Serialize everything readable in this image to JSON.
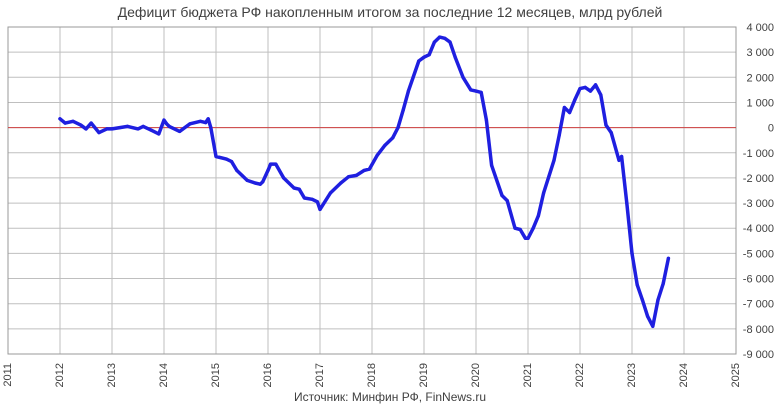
{
  "chart_data": {
    "type": "line",
    "title": "Дефицит бюджета РФ накопленным итогом за последние 12 месяцев, млрд рублей",
    "source": "Источник: Минфин РФ, FinNews.ru",
    "x_ticks": [
      "2011",
      "2012",
      "2013",
      "2014",
      "2015",
      "2016",
      "2017",
      "2018",
      "2019",
      "2020",
      "2021",
      "2022",
      "2023",
      "2024",
      "2025"
    ],
    "y_ticks": [
      "4 000",
      "3 000",
      "2 000",
      "1 000",
      "0",
      "-1 000",
      "-2 000",
      "-3 000",
      "-4 000",
      "-5 000",
      "-6 000",
      "-7 000",
      "-8 000",
      "-9 000"
    ],
    "xlim": [
      2011,
      2025
    ],
    "ylim": [
      -9000,
      4000
    ],
    "grid": true,
    "reference_line": {
      "y": 0,
      "color": "#d04040"
    },
    "series": [
      {
        "color": "#1f1fe0",
        "x": [
          2012.0,
          2012.1,
          2012.25,
          2012.4,
          2012.5,
          2012.6,
          2012.75,
          2012.9,
          2013.0,
          2013.15,
          2013.3,
          2013.5,
          2013.6,
          2013.75,
          2013.9,
          2014.0,
          2014.05,
          2014.1,
          2014.3,
          2014.5,
          2014.7,
          2014.8,
          2014.85,
          2014.9,
          2015.0,
          2015.2,
          2015.3,
          2015.4,
          2015.5,
          2015.6,
          2015.75,
          2015.85,
          2015.9,
          2016.0,
          2016.05,
          2016.15,
          2016.3,
          2016.5,
          2016.6,
          2016.7,
          2016.85,
          2016.95,
          2017.0,
          2017.2,
          2017.4,
          2017.55,
          2017.7,
          2017.85,
          2017.95,
          2018.1,
          2018.25,
          2018.4,
          2018.5,
          2018.6,
          2018.7,
          2018.9,
          2019.0,
          2019.1,
          2019.2,
          2019.3,
          2019.4,
          2019.5,
          2019.6,
          2019.75,
          2019.9,
          2020.0,
          2020.1,
          2020.2,
          2020.3,
          2020.5,
          2020.6,
          2020.75,
          2020.85,
          2020.95,
          2021.0,
          2021.1,
          2021.2,
          2021.3,
          2021.5,
          2021.6,
          2021.7,
          2021.8,
          2021.9,
          2022.0,
          2022.1,
          2022.2,
          2022.3,
          2022.4,
          2022.5,
          2022.6,
          2022.75,
          2022.8,
          2022.9,
          2023.0,
          2023.1,
          2023.2,
          2023.3,
          2023.4,
          2023.5,
          2023.6,
          2023.7
        ],
        "values": [
          350,
          180,
          250,
          100,
          -50,
          180,
          -200,
          -50,
          -50,
          0,
          50,
          -50,
          50,
          -100,
          -250,
          300,
          150,
          50,
          -150,
          150,
          250,
          200,
          350,
          0,
          -1150,
          -1250,
          -1350,
          -1700,
          -1900,
          -2100,
          -2200,
          -2250,
          -2150,
          -1700,
          -1450,
          -1450,
          -2000,
          -2400,
          -2450,
          -2800,
          -2850,
          -2950,
          -3250,
          -2600,
          -2200,
          -1950,
          -1900,
          -1700,
          -1650,
          -1100,
          -700,
          -400,
          0,
          700,
          1450,
          2650,
          2800,
          2900,
          3400,
          3600,
          3550,
          3400,
          2800,
          2000,
          1500,
          1450,
          1400,
          300,
          -1500,
          -2700,
          -2900,
          -4000,
          -4050,
          -4400,
          -4400,
          -4000,
          -3500,
          -2600,
          -1300,
          -300,
          800,
          600,
          1100,
          1550,
          1600,
          1450,
          1700,
          1300,
          100,
          -200,
          -1300,
          -1150,
          -3000,
          -5000,
          -6250,
          -6850,
          -7500,
          -7900,
          -6850,
          -6200,
          -5200
        ]
      }
    ]
  }
}
